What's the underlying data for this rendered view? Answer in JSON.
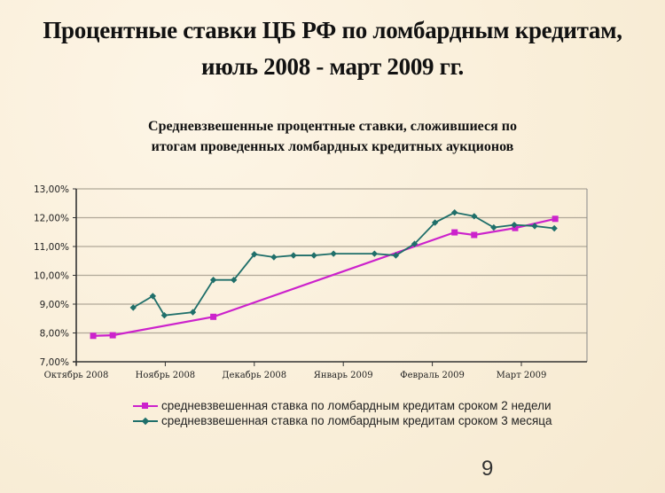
{
  "slide": {
    "title_line1": "Процентные ставки ЦБ РФ по ломбардным кредитам,",
    "title_line2": "июль 2008 - март 2009 гг.",
    "page_number": "9"
  },
  "chart_title": {
    "line1": "Средневзвешенные процентные ставки, сложившиеся по",
    "line2": "итогам проведенных ломбардных кредитных аукционов"
  },
  "colors": {
    "background": "#fbf1df",
    "series_2w": "#cc22cc",
    "series_3m": "#1f6f6a",
    "grid": "#b0a898",
    "axis": "#333333"
  },
  "chart_data": {
    "type": "line",
    "title": "Средневзвешенные процентные ставки, сложившиеся по итогам проведенных ломбардных кредитных аукционов",
    "xlabel": "",
    "ylabel": "",
    "ylim": [
      7.0,
      13.0
    ],
    "y_ticks": [
      "7,00%",
      "8,00%",
      "9,00%",
      "10,00%",
      "11,00%",
      "12,00%",
      "13,00%"
    ],
    "x_ticks": [
      "Октябрь 2008",
      "Ноябрь 2008",
      "Декабрь 2008",
      "Январь 2009",
      "Февраль 2009",
      "Март 2009"
    ],
    "grid": true,
    "legend_position": "bottom",
    "series": [
      {
        "name": "средневзвешенная ставка по ломбардным кредитам сроком 2 недели",
        "marker": "square",
        "points": [
          {
            "x": 0.19,
            "y": 7.9
          },
          {
            "x": 0.41,
            "y": 7.92
          },
          {
            "x": 1.54,
            "y": 8.56
          },
          {
            "x": 4.25,
            "y": 11.49
          },
          {
            "x": 4.47,
            "y": 11.4
          },
          {
            "x": 4.93,
            "y": 11.64
          },
          {
            "x": 5.38,
            "y": 11.96
          }
        ]
      },
      {
        "name": "средневзвешенная ставка по ломбардным кредитам сроком 3 месяца",
        "marker": "diamond",
        "points": [
          {
            "x": 0.64,
            "y": 8.88
          },
          {
            "x": 0.86,
            "y": 9.28
          },
          {
            "x": 0.99,
            "y": 8.61
          },
          {
            "x": 1.31,
            "y": 8.72
          },
          {
            "x": 1.54,
            "y": 9.84
          },
          {
            "x": 1.77,
            "y": 9.84
          },
          {
            "x": 2.0,
            "y": 10.73
          },
          {
            "x": 2.22,
            "y": 10.63
          },
          {
            "x": 2.44,
            "y": 10.69
          },
          {
            "x": 2.67,
            "y": 10.69
          },
          {
            "x": 2.89,
            "y": 10.75
          },
          {
            "x": 3.35,
            "y": 10.75
          },
          {
            "x": 3.59,
            "y": 10.69
          },
          {
            "x": 3.8,
            "y": 11.09
          },
          {
            "x": 4.03,
            "y": 11.83
          },
          {
            "x": 4.25,
            "y": 12.18
          },
          {
            "x": 4.47,
            "y": 12.05
          },
          {
            "x": 4.69,
            "y": 11.66
          },
          {
            "x": 4.92,
            "y": 11.75
          },
          {
            "x": 5.15,
            "y": 11.71
          },
          {
            "x": 5.37,
            "y": 11.63
          }
        ]
      }
    ]
  },
  "legend": {
    "items": [
      {
        "label": "средневзвешенная ставка по ломбардным кредитам сроком 2 недели",
        "icon": "magenta-square-line-icon"
      },
      {
        "label": "средневзвешенная ставка по ломбардным кредитам сроком 3 месяца",
        "icon": "teal-diamond-line-icon"
      }
    ]
  }
}
